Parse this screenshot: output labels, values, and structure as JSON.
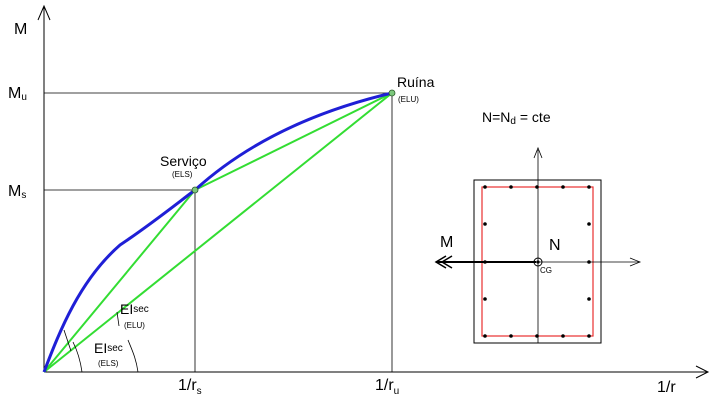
{
  "axes": {
    "y_label": "M",
    "x_label": "1/r",
    "ticks_y": [
      {
        "main": "M",
        "sub": "u"
      },
      {
        "main": "M",
        "sub": "s"
      }
    ],
    "ticks_x": [
      {
        "main": "1/r",
        "sub": "s"
      },
      {
        "main": "1/r",
        "sub": "u"
      }
    ]
  },
  "points": {
    "service": {
      "label": "Serviço",
      "sub": "(ELS)"
    },
    "ruin": {
      "label": "Ruína",
      "sub": "(ELU)"
    }
  },
  "stiffness": {
    "els": {
      "main": "EI",
      "sup": "sec",
      "sub": "(ELS)"
    },
    "elu": {
      "main": "EI",
      "sup": "sec",
      "sub": "(ELU)"
    }
  },
  "section": {
    "equation_n": "N=N",
    "equation_sub": "d",
    "equation_rest": " = cte",
    "moment_label": "M",
    "normal_label": "N",
    "cg_label": "CG"
  },
  "colors": {
    "curve": "#1f1fd6",
    "secant": "#33dd33",
    "rebar_outline": "#e83030",
    "point": "#7dc87d"
  }
}
